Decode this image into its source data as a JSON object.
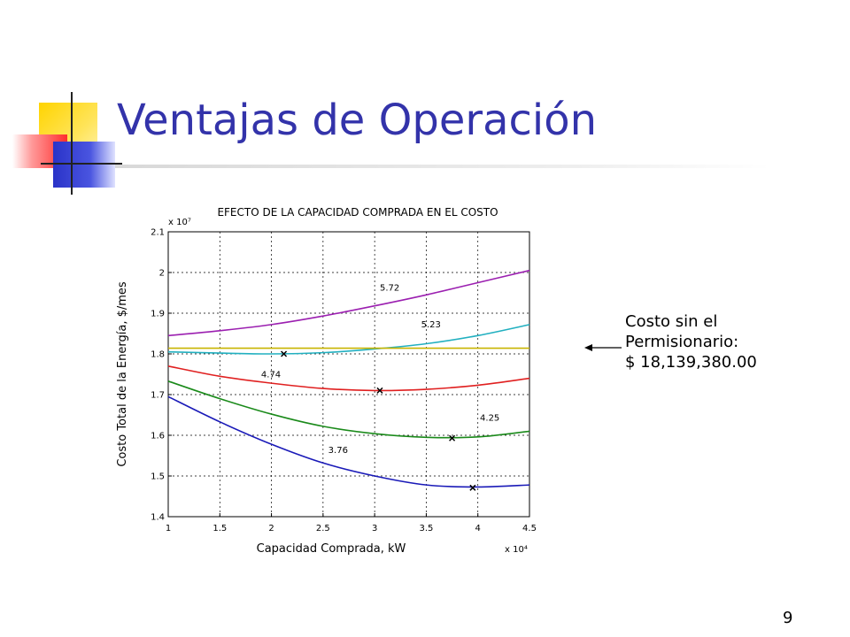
{
  "slide": {
    "title": "Ventajas de Operación",
    "page_number": "9"
  },
  "annotation": {
    "lines": [
      "Costo sin el",
      "Permisionario:",
      "$ 18,139,380.00"
    ]
  },
  "chart_data": {
    "type": "line",
    "title": "EFECTO DE LA CAPACIDAD COMPRADA EN EL COSTO",
    "xlabel": "Capacidad Comprada, kW",
    "ylabel": "Costo Total de la Energía, $/mes",
    "x_multiplier": "x 10⁴",
    "y_multiplier": "x 10⁷",
    "xlim": [
      1,
      4.5
    ],
    "ylim": [
      1.4,
      2.1
    ],
    "x_ticks": [
      1,
      1.5,
      2,
      2.5,
      3,
      3.5,
      4,
      4.5
    ],
    "x_tick_labels": [
      "1",
      "1.5",
      "2",
      "2.5",
      "3",
      "3.5",
      "4",
      "4.5"
    ],
    "y_ticks": [
      1.4,
      1.5,
      1.6,
      1.7,
      1.8,
      1.9,
      2.0,
      2.1
    ],
    "y_tick_labels": [
      "1.4",
      "1.5",
      "1.6",
      "1.7",
      "1.8",
      "1.9",
      "2",
      "2.1"
    ],
    "grid": true,
    "series": [
      {
        "name": "5.72",
        "color": "#9b1fb0",
        "x": [
          1,
          1.5,
          2,
          2.5,
          3,
          3.5,
          4,
          4.5
        ],
        "y": [
          1.845,
          1.857,
          1.872,
          1.893,
          1.918,
          1.945,
          1.975,
          2.005
        ],
        "label": {
          "text": "5.72",
          "x": 3.05,
          "y": 1.955
        }
      },
      {
        "name": "5.23",
        "color": "#22b0c0",
        "x": [
          1,
          1.5,
          2,
          2.5,
          3,
          3.5,
          4,
          4.5
        ],
        "y": [
          1.805,
          1.802,
          1.8,
          1.803,
          1.812,
          1.825,
          1.845,
          1.872
        ],
        "label": {
          "text": "5.23",
          "x": 3.45,
          "y": 1.865
        },
        "marker": {
          "x": 2.12,
          "y": 1.8
        }
      },
      {
        "name": "",
        "color": "#c8b400",
        "x": [
          1,
          4.5
        ],
        "y": [
          1.814,
          1.814
        ]
      },
      {
        "name": "4.74",
        "color": "#e02020",
        "x": [
          1,
          1.5,
          2,
          2.5,
          3,
          3.5,
          4,
          4.5
        ],
        "y": [
          1.77,
          1.745,
          1.728,
          1.715,
          1.71,
          1.713,
          1.723,
          1.74
        ],
        "label": {
          "text": "4.74",
          "x": 1.9,
          "y": 1.742
        },
        "marker": {
          "x": 3.05,
          "y": 1.71
        }
      },
      {
        "name": "4.25",
        "color": "#1a8a1a",
        "x": [
          1,
          1.5,
          2,
          2.5,
          3,
          3.5,
          4,
          4.5
        ],
        "y": [
          1.733,
          1.69,
          1.652,
          1.622,
          1.604,
          1.595,
          1.596,
          1.61
        ],
        "label": {
          "text": "4.25",
          "x": 4.02,
          "y": 1.636
        },
        "marker": {
          "x": 3.75,
          "y": 1.593
        }
      },
      {
        "name": "3.76",
        "color": "#1a1ab8",
        "x": [
          1,
          1.5,
          2,
          2.5,
          3,
          3.5,
          4,
          4.5
        ],
        "y": [
          1.695,
          1.633,
          1.578,
          1.532,
          1.5,
          1.478,
          1.473,
          1.478
        ],
        "label": {
          "text": "3.76",
          "x": 2.55,
          "y": 1.557
        },
        "marker": {
          "x": 3.95,
          "y": 1.471
        }
      }
    ]
  }
}
